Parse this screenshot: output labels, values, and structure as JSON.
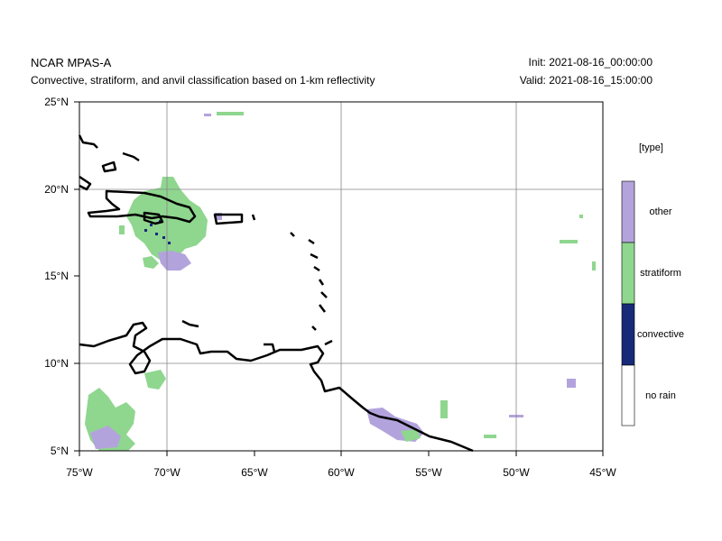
{
  "header": {
    "title": "NCAR MPAS-A",
    "subtitle": "Convective, stratiform, and anvil classification based on 1-km reflectivity",
    "init": "Init: 2021-08-16_00:00:00",
    "valid": "Valid: 2021-08-16_15:00:00"
  },
  "map": {
    "lon_range": [
      -75,
      -45
    ],
    "lat_range": [
      5,
      25
    ],
    "lon_ticks": [
      "75°W",
      "70°W",
      "65°W",
      "60°W",
      "55°W",
      "50°W",
      "45°W"
    ],
    "lat_ticks": [
      "25°N",
      "20°N",
      "15°N",
      "10°N",
      "5°N"
    ],
    "grid_lon": [
      -70,
      -60,
      -50
    ],
    "grid_lat": [
      10,
      20
    ]
  },
  "legend": {
    "title": "[type]",
    "items": [
      {
        "label": "other",
        "color": "#b3a3dc"
      },
      {
        "label": "stratiform",
        "color": "#8fd68f"
      },
      {
        "label": "convective",
        "color": "#172a78"
      },
      {
        "label": "no rain",
        "color": "#ffffff"
      }
    ]
  },
  "colors": {
    "other": "#b3a3dc",
    "stratiform": "#8fd68f",
    "convective": "#172a78",
    "coast": "#000000",
    "grid": "#888888"
  }
}
